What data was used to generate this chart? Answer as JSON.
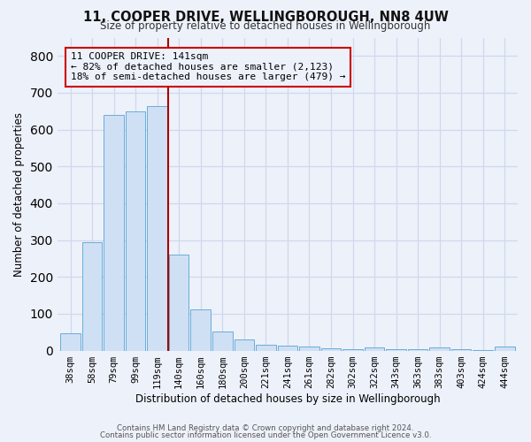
{
  "title_line1": "11, COOPER DRIVE, WELLINGBOROUGH, NN8 4UW",
  "title_line2": "Size of property relative to detached houses in Wellingborough",
  "xlabel": "Distribution of detached houses by size in Wellingborough",
  "ylabel": "Number of detached properties",
  "categories": [
    "38sqm",
    "58sqm",
    "79sqm",
    "99sqm",
    "119sqm",
    "140sqm",
    "160sqm",
    "180sqm",
    "200sqm",
    "221sqm",
    "241sqm",
    "261sqm",
    "282sqm",
    "302sqm",
    "322sqm",
    "343sqm",
    "363sqm",
    "383sqm",
    "403sqm",
    "424sqm",
    "444sqm"
  ],
  "values": [
    48,
    294,
    640,
    650,
    665,
    260,
    113,
    53,
    30,
    16,
    14,
    10,
    7,
    5,
    8,
    5,
    5,
    8,
    5,
    2,
    10
  ],
  "bar_color": "#cfe0f5",
  "bar_edge_color": "#6aacd8",
  "vline_x": 4.5,
  "vline_color": "#aa0000",
  "annotation_box_text": "11 COOPER DRIVE: 141sqm\n← 82% of detached houses are smaller (2,123)\n18% of semi-detached houses are larger (479) →",
  "annotation_box_color": "#cc0000",
  "annotation_text_color": "#000000",
  "ylim": [
    0,
    850
  ],
  "yticks": [
    0,
    100,
    200,
    300,
    400,
    500,
    600,
    700,
    800
  ],
  "grid_color": "#d0d8ec",
  "background_color": "#edf1fa",
  "footer_line1": "Contains HM Land Registry data © Crown copyright and database right 2024.",
  "footer_line2": "Contains public sector information licensed under the Open Government Licence v3.0."
}
